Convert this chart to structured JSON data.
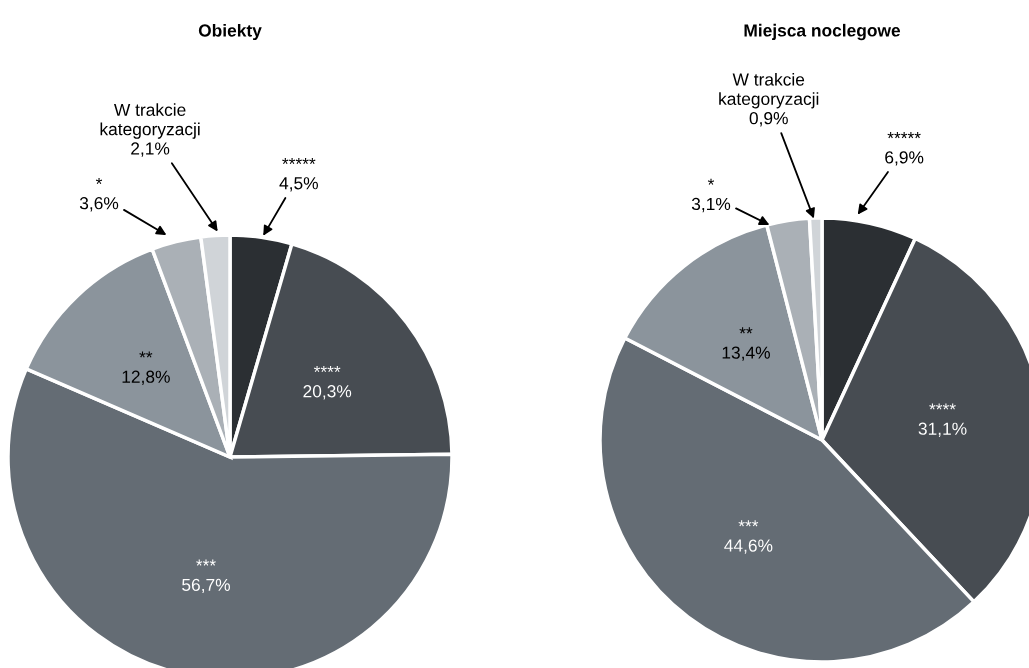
{
  "chart_data": [
    {
      "type": "pie",
      "title": "Obiekty",
      "categories": [
        "*****",
        "****",
        "***",
        "**",
        "*",
        "W trakcie\nkategoryzacji"
      ],
      "values": [
        4.5,
        20.3,
        56.7,
        12.8,
        3.6,
        2.1
      ],
      "value_labels": [
        "4,5%",
        "20,3%",
        "56,7%",
        "12,8%",
        "3,6%",
        "2,1%"
      ],
      "colors": [
        "#2b2f33",
        "#474c52",
        "#646c74",
        "#8b949c",
        "#aab0b6",
        "#d0d4d8"
      ]
    },
    {
      "type": "pie",
      "title": "Miejsca noclegowe",
      "categories": [
        "*****",
        "****",
        "***",
        "**",
        "*",
        "W trakcie\nkategoryzacji"
      ],
      "values": [
        6.9,
        31.1,
        44.6,
        13.4,
        3.1,
        0.9
      ],
      "value_labels": [
        "6,9%",
        "31,1%",
        "44,6%",
        "13,4%",
        "3,1%",
        "0,9%"
      ],
      "colors": [
        "#2b2f33",
        "#474c52",
        "#646c74",
        "#8b949c",
        "#aab0b6",
        "#d0d4d8"
      ]
    }
  ]
}
